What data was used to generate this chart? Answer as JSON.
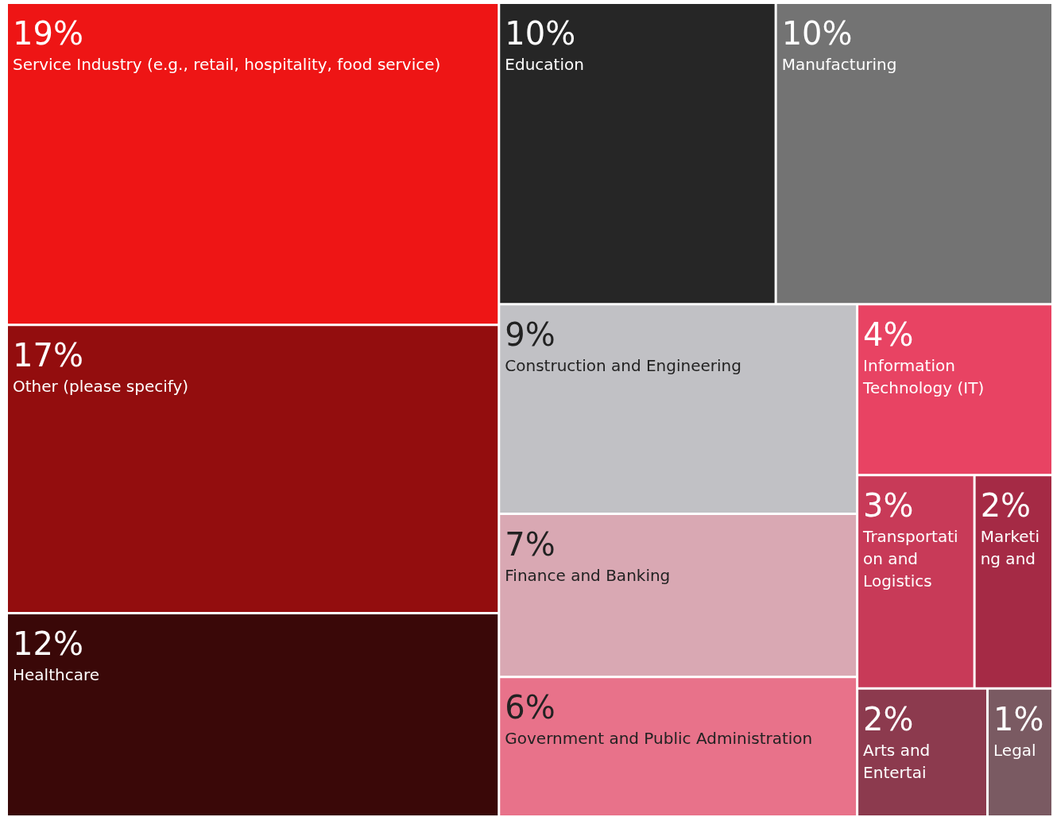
{
  "chart_data": {
    "type": "other",
    "categories": [
      "Service Industry (e.g., retail, hospitality, food service)",
      "Other (please specify)",
      "Healthcare",
      "Education",
      "Manufacturing",
      "Construction and Engineering",
      "Finance and Banking",
      "Government and Public Administration",
      "Information Technology (IT)",
      "Transportation and Logistics",
      "Marketing and",
      "Arts and Entertai",
      "Legal"
    ],
    "values": [
      19,
      17,
      12,
      10,
      10,
      9,
      7,
      6,
      4,
      3,
      2,
      2,
      1
    ],
    "value_labels": [
      "19%",
      "17%",
      "12%",
      "10%",
      "10%",
      "9%",
      "7%",
      "6%",
      "4%",
      "3%",
      "2%",
      "2%",
      "1%"
    ],
    "colors": [
      "#ee1515",
      "#930d0e",
      "#3a0808",
      "#262626",
      "#737373",
      "#c1c1c5",
      "#d9a8b3",
      "#e8728a",
      "#e84363",
      "#c83a58",
      "#a52a45",
      "#8c3a4e",
      "#7a5a62"
    ]
  }
}
